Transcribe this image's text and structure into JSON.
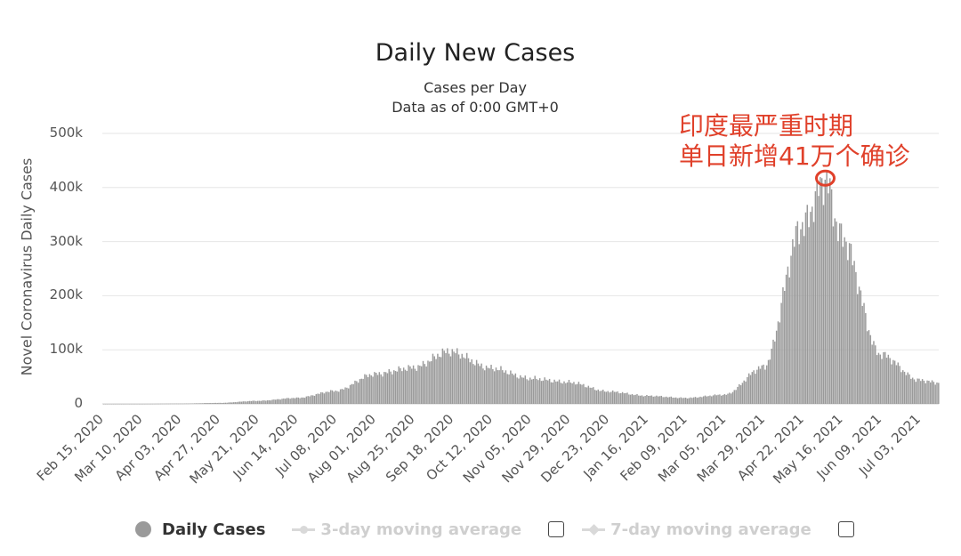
{
  "chart_data": {
    "type": "bar",
    "title": "Daily New Cases",
    "subtitle": [
      "Cases per Day",
      "Data as of 0:00 GMT+0"
    ],
    "ylabel": "Novel Coronavirus Daily Cases",
    "ylim": [
      0,
      500000
    ],
    "y_tick_labels": [
      "0",
      "100k",
      "200k",
      "300k",
      "400k",
      "500k"
    ],
    "y_ticks": [
      0,
      100000,
      200000,
      300000,
      400000,
      500000
    ],
    "x_range": [
      "2020-02-15",
      "2021-07-15"
    ],
    "x_tick_labels": [
      "Feb 15, 2020",
      "Mar 10, 2020",
      "Apr 03, 2020",
      "Apr 27, 2020",
      "May 21, 2020",
      "Jun 14, 2020",
      "Jul 08, 2020",
      "Aug 01, 2020",
      "Aug 25, 2020",
      "Sep 18, 2020",
      "Oct 12, 2020",
      "Nov 05, 2020",
      "Nov 29, 2020",
      "Dec 23, 2020",
      "Jan 16, 2021",
      "Feb 09, 2021",
      "Mar 05, 2021",
      "Mar 29, 2021",
      "Apr 22, 2021",
      "May 16, 2021",
      "Jun 09, 2021",
      "Jul 03, 2021"
    ],
    "series": [
      {
        "name": "Daily Cases",
        "color": "#9a9a9a",
        "points": [
          [
            "2020-02-15",
            0
          ],
          [
            "2020-03-10",
            50
          ],
          [
            "2020-04-03",
            500
          ],
          [
            "2020-04-27",
            1800
          ],
          [
            "2020-05-21",
            5600
          ],
          [
            "2020-06-14",
            11000
          ],
          [
            "2020-07-08",
            24000
          ],
          [
            "2020-08-01",
            55000
          ],
          [
            "2020-08-25",
            67000
          ],
          [
            "2020-09-16",
            97000
          ],
          [
            "2020-10-12",
            66000
          ],
          [
            "2020-11-05",
            47000
          ],
          [
            "2020-11-29",
            40000
          ],
          [
            "2020-12-23",
            23000
          ],
          [
            "2021-01-16",
            15000
          ],
          [
            "2021-02-09",
            11000
          ],
          [
            "2021-03-05",
            17000
          ],
          [
            "2021-03-29",
            68000
          ],
          [
            "2021-04-22",
            330000
          ],
          [
            "2021-05-06",
            414000
          ],
          [
            "2021-05-16",
            310000
          ],
          [
            "2021-06-09",
            92000
          ],
          [
            "2021-07-03",
            44000
          ],
          [
            "2021-07-15",
            39000
          ]
        ]
      }
    ],
    "grid": true,
    "legend_position": "bottom",
    "annotation": {
      "lines": [
        "印度最严重时期",
        "单日新增41万个确诊"
      ],
      "color": "#e0412b",
      "target_date": "2021-05-06",
      "target_value": 414000
    }
  },
  "legend": {
    "items": [
      {
        "label": "Daily Cases",
        "active": true
      },
      {
        "label": "3-day moving average",
        "active": false
      },
      {
        "label": "7-day moving average",
        "active": false
      }
    ]
  }
}
